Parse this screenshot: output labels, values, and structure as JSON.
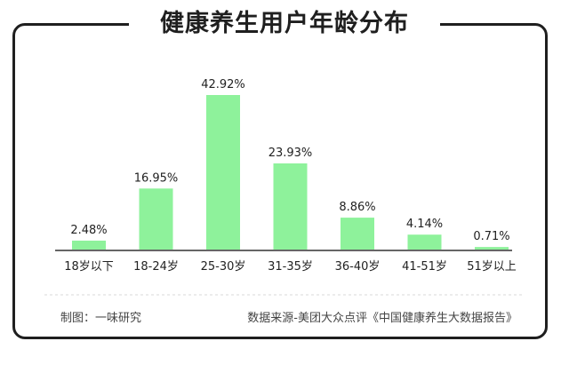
{
  "title": "健康养生用户年龄分布",
  "footer": {
    "maker": "制图：一味研究",
    "source": "数据来源-美团大众点评《中国健康养生大数据报告》"
  },
  "colors": {
    "bar": "#8ef29b",
    "axis": "#333333",
    "text": "#222222",
    "divider": "#d9d9d9"
  },
  "chart_data": {
    "type": "bar",
    "title": "健康养生用户年龄分布",
    "categories": [
      "18岁以下",
      "18-24岁",
      "25-30岁",
      "31-35岁",
      "36-40岁",
      "41-51岁",
      "51岁以上"
    ],
    "values": [
      2.48,
      16.95,
      42.92,
      23.93,
      8.86,
      4.14,
      0.71
    ],
    "data_labels": [
      "2.48%",
      "16.95%",
      "42.92%",
      "23.93%",
      "8.86%",
      "4.14%",
      "0.71%"
    ],
    "unit": "%",
    "ylim": [
      0,
      42.92
    ],
    "grid": false,
    "legend": "none"
  }
}
